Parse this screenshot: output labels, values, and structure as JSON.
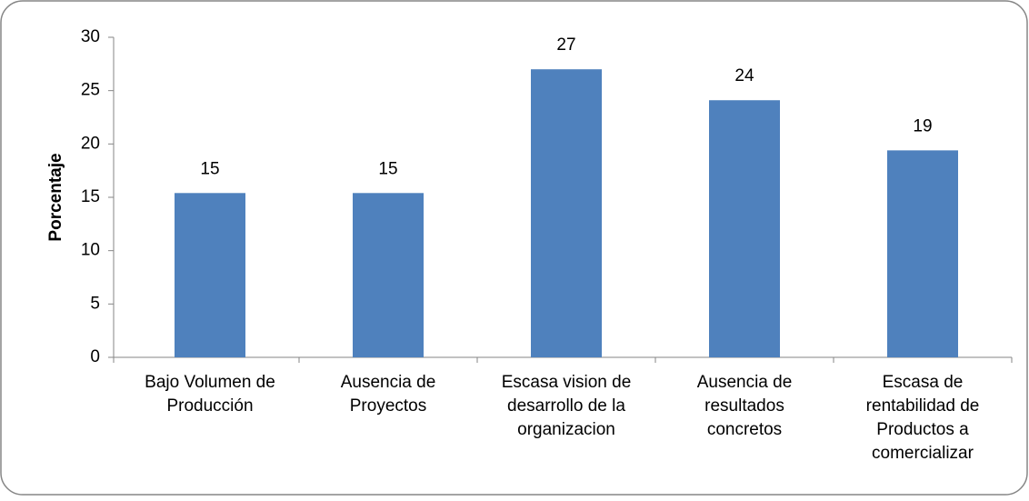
{
  "chart_data": {
    "type": "bar",
    "y_axis_label": "Porcentaje",
    "categories": [
      "Bajo Volumen de\nProducción",
      "Ausencia de\nProyectos",
      "Escasa vision de\ndesarrollo de la\norganizacion",
      "Ausencia de\nresultados\nconcretos",
      "Escasa de\nrentabilidad de\nProductos a\ncomercializar"
    ],
    "values": [
      15.4,
      15.4,
      27,
      24.1,
      19.4
    ],
    "value_labels": [
      "15",
      "15",
      "27",
      "24",
      "19"
    ],
    "color": "#4f81bd",
    "ylim": [
      0,
      30
    ],
    "yticks": [
      0,
      5,
      10,
      15,
      20,
      25,
      30
    ],
    "grid": false
  }
}
